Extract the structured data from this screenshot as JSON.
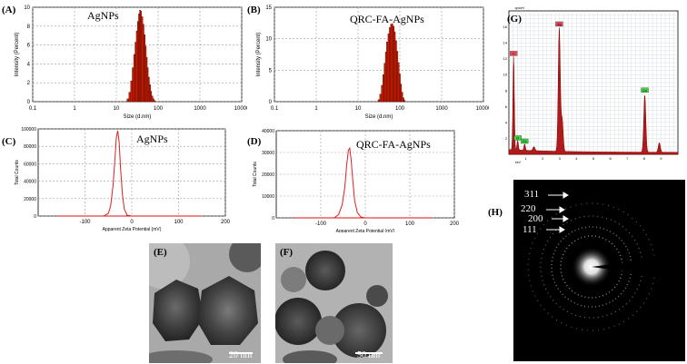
{
  "panels": {
    "A": {
      "label": "(A)",
      "title": "AgNPs",
      "ylabel": "Intensity (Percent)",
      "xlabel": "Size (d.nm)"
    },
    "B": {
      "label": "(B)",
      "title": "QRC-FA-AgNPs",
      "ylabel": "Intensity (Percent)",
      "xlabel": "Size (d.nm)"
    },
    "C": {
      "label": "(C)",
      "title": "AgNPs",
      "ylabel": "Total Counts",
      "xlabel": "Apparent Zeta Potential (mV)"
    },
    "D": {
      "label": "(D)",
      "title": "QRC-FA-AgNPs",
      "ylabel": "Total Counts",
      "xlabel": "Apparent Zeta Potential (mV)"
    },
    "E": {
      "label": "(E)",
      "scale": "20 nm"
    },
    "F": {
      "label": "(F)",
      "scale": "50 nm"
    },
    "G": {
      "label": "(G)",
      "xlabel": "keV",
      "ylabel": "cps/eV"
    },
    "H": {
      "label": "(H)",
      "rings": [
        "311",
        "220",
        "200",
        "111"
      ]
    }
  },
  "chart_data": [
    {
      "id": "A",
      "type": "bar",
      "title": "AgNPs",
      "xlabel": "Size (d.nm)",
      "ylabel": "Intensity (Percent)",
      "xscale": "log",
      "xlim": [
        0.1,
        10000
      ],
      "ylim": [
        0,
        10
      ],
      "xticks": [
        "0.1",
        "1",
        "10",
        "100",
        "1000",
        "10000"
      ],
      "yticks": [
        "0",
        "2",
        "4",
        "6",
        "8",
        "10"
      ],
      "x": [
        18,
        20,
        22,
        24,
        26,
        28,
        30,
        32,
        34,
        36,
        38,
        40,
        43,
        46,
        49,
        52,
        55,
        58,
        62,
        66,
        70,
        75,
        80
      ],
      "values": [
        0.3,
        1.0,
        2.2,
        3.6,
        5.0,
        6.3,
        7.5,
        8.5,
        9.3,
        9.7,
        9.6,
        9.0,
        8.2,
        7.1,
        5.9,
        4.7,
        3.6,
        2.6,
        1.8,
        1.1,
        0.6,
        0.3,
        0.1
      ]
    },
    {
      "id": "B",
      "type": "bar",
      "title": "QRC-FA-AgNPs",
      "xlabel": "Size (d.nm)",
      "ylabel": "Intensity (Percent)",
      "xscale": "log",
      "xlim": [
        0.1,
        10000
      ],
      "ylim": [
        0,
        15
      ],
      "xticks": [
        "0.1",
        "1",
        "10",
        "100",
        "1000",
        "10000"
      ],
      "yticks": [
        "0",
        "5",
        "10",
        "15"
      ],
      "x": [
        30,
        33,
        36,
        39,
        42,
        45,
        48,
        52,
        56,
        60,
        64,
        68,
        73,
        78,
        84,
        90,
        96,
        103,
        110,
        118,
        126
      ],
      "values": [
        0.3,
        1.2,
        2.6,
        4.3,
        6.1,
        7.9,
        9.5,
        10.8,
        11.8,
        12.3,
        12.4,
        12.0,
        11.1,
        9.7,
        8.0,
        6.2,
        4.4,
        2.8,
        1.5,
        0.6,
        0.2
      ]
    },
    {
      "id": "C",
      "type": "line",
      "title": "AgNPs",
      "xlabel": "Apparent Zeta Potential (mV)",
      "ylabel": "Total Counts",
      "xlim": [
        -200,
        200
      ],
      "ylim": [
        0,
        100000
      ],
      "xticks": [
        "-100",
        "0",
        "100",
        "200"
      ],
      "yticks": [
        "0",
        "20000",
        "40000",
        "60000",
        "80000",
        "100000"
      ],
      "x": [
        -60,
        -50,
        -45,
        -40,
        -36,
        -33,
        -30,
        -27,
        -24,
        -20,
        -16,
        -10,
        0
      ],
      "y": [
        0,
        3000,
        12000,
        35000,
        65000,
        90000,
        98000,
        85000,
        55000,
        25000,
        8000,
        1000,
        0
      ]
    },
    {
      "id": "D",
      "type": "line",
      "title": "QRC-FA-AgNPs",
      "xlabel": "Apparent Zeta Potential (mV)",
      "ylabel": "Total Counts",
      "xlim": [
        -200,
        200
      ],
      "ylim": [
        0,
        40000
      ],
      "xticks": [
        "-100",
        "0",
        "100",
        "200"
      ],
      "yticks": [
        "0",
        "10000",
        "20000",
        "30000",
        "40000"
      ],
      "x": [
        -70,
        -60,
        -52,
        -46,
        -42,
        -38,
        -35,
        -32,
        -28,
        -24,
        -18,
        -10,
        0
      ],
      "y": [
        0,
        1500,
        6000,
        14000,
        24000,
        31000,
        32000,
        27000,
        17000,
        8000,
        2500,
        400,
        0
      ]
    },
    {
      "id": "G",
      "type": "area",
      "xlabel": "keV",
      "ylabel": "cps/eV",
      "xlim": [
        0,
        10
      ],
      "ylim": [
        0,
        18
      ],
      "xticks": [
        "1",
        "2",
        "3",
        "4",
        "5",
        "6",
        "7",
        "8",
        "9"
      ],
      "yticks": [
        "2",
        "4",
        "6",
        "8",
        "10",
        "12",
        "14",
        "16"
      ],
      "peaks": [
        {
          "x": 0.28,
          "y": 11.8,
          "label": "C"
        },
        {
          "x": 0.52,
          "y": 1.2,
          "label": "O"
        },
        {
          "x": 0.93,
          "y": 0.8,
          "label": "Cu"
        },
        {
          "x": 1.48,
          "y": 0.5,
          "label": ""
        },
        {
          "x": 2.98,
          "y": 15.5,
          "label": "Ag"
        },
        {
          "x": 3.15,
          "y": 4.0,
          "label": ""
        },
        {
          "x": 8.04,
          "y": 7.2,
          "label": "Cu"
        },
        {
          "x": 8.9,
          "y": 1.2,
          "label": ""
        }
      ]
    }
  ]
}
